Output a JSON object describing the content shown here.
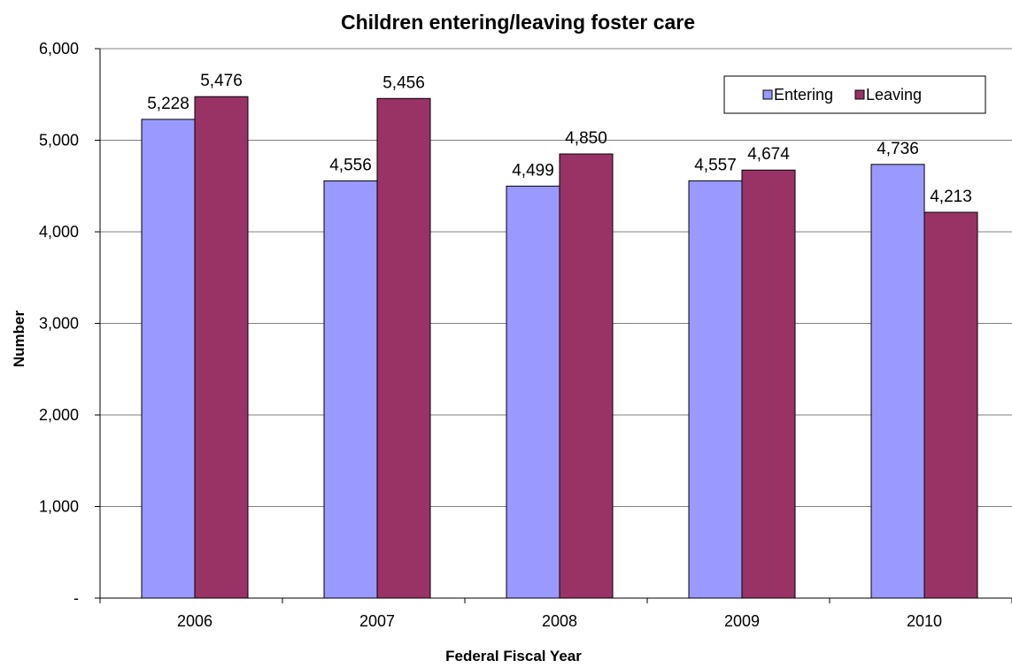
{
  "chart_data": {
    "type": "bar",
    "title": "Children entering/leaving foster care",
    "xlabel": "Federal Fiscal Year",
    "ylabel": "Number",
    "categories": [
      "2006",
      "2007",
      "2008",
      "2009",
      "2010"
    ],
    "series": [
      {
        "name": "Entering",
        "values": [
          5228,
          4556,
          4499,
          4557,
          4736
        ],
        "labels": [
          "5,228",
          "4,556",
          "4,499",
          "4,557",
          "4,736"
        ],
        "color": "#9999ff"
      },
      {
        "name": "Leaving",
        "values": [
          5476,
          5456,
          4850,
          4674,
          4213
        ],
        "labels": [
          "5,476",
          "5,456",
          "4,850",
          "4,674",
          "4,213"
        ],
        "color": "#993366"
      }
    ],
    "ylim": [
      0,
      6000
    ],
    "yticks": [
      0,
      1000,
      2000,
      3000,
      4000,
      5000,
      6000
    ],
    "ytick_labels": [
      "-",
      "1,000",
      "2,000",
      "3,000",
      "4,000",
      "5,000",
      "6,000"
    ],
    "grid": true,
    "legend_position": "top-right"
  }
}
